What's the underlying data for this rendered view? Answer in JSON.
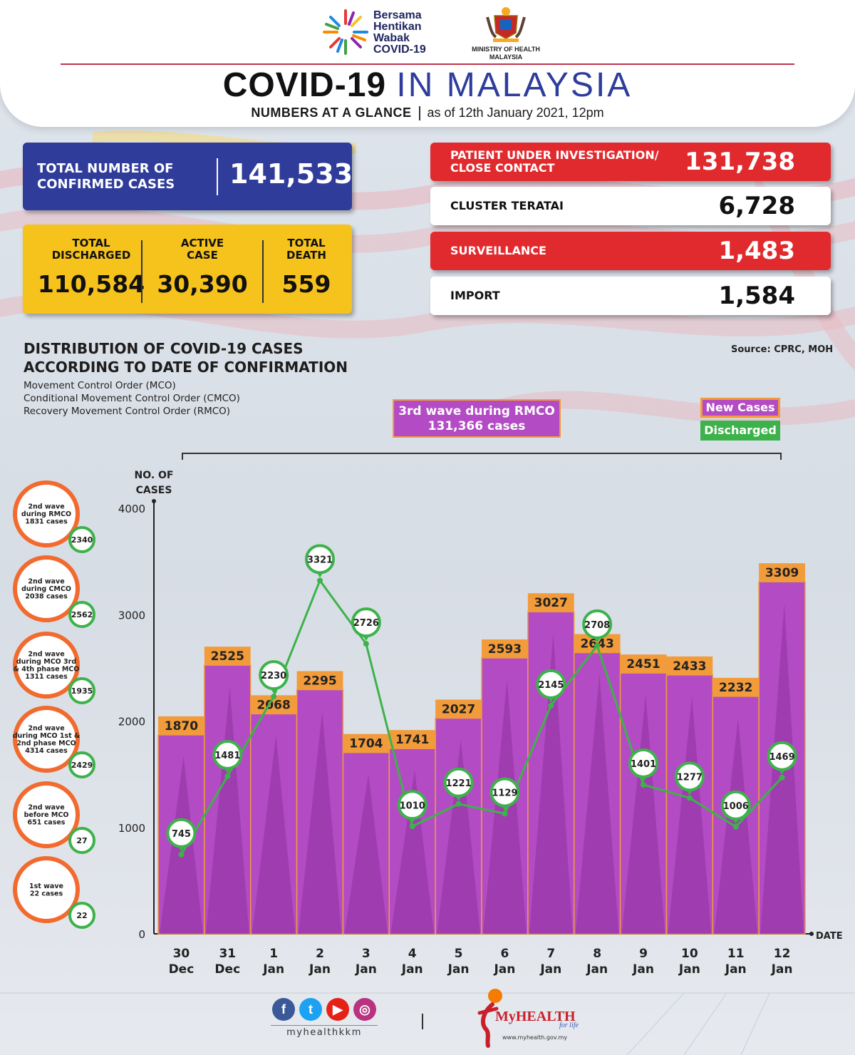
{
  "header": {
    "bersama_logo_text": "Bersama\nHentikan\nWabak\nCOVID-19",
    "moh_logo_text": "MINISTRY OF HEALTH\nMALAYSIA",
    "title_part1": "COVID-19",
    "title_part2": "IN MALAYSIA",
    "subtitle_bold": "NUMBERS AT A GLANCE",
    "subtitle_date": "as of 12th January 2021, 12pm"
  },
  "summary": {
    "total_label": "TOTAL NUMBER OF CONFIRMED CASES",
    "total_value": "141,533",
    "discharged_label": "TOTAL\nDISCHARGED",
    "discharged_value": "110,584",
    "active_label": "ACTIVE\nCASE",
    "active_value": "30,390",
    "death_label": "TOTAL\nDEATH",
    "death_value": "559"
  },
  "sources": [
    {
      "label": "PATIENT UNDER INVESTIGATION/ CLOSE CONTACT",
      "value": "131,738",
      "style": "red"
    },
    {
      "label": "CLUSTER TERATAI",
      "value": "6,728",
      "style": "white"
    },
    {
      "label": "SURVEILLANCE",
      "value": "1,483",
      "style": "red"
    },
    {
      "label": "IMPORT",
      "value": "1,584",
      "style": "white"
    }
  ],
  "distribution": {
    "title": "DISTRIBUTION OF COVID-19 CASES\nACCORDING TO DATE OF CONFIRMATION",
    "notes": [
      "Movement Control Order (MCO)",
      "Conditional Movement Control Order (CMCO)",
      "Recovery Movement Control Order (RMCO)"
    ],
    "source": "Source: CPRC, MOH",
    "wave3_label": "3rd wave during RMCO\n131,366 cases",
    "legend_new": "New Cases",
    "legend_discharged": "Discharged"
  },
  "chart_data": {
    "type": "bar",
    "ylabel": "NO. OF\nCASES",
    "xlabel": "DATE",
    "ylim": [
      0,
      4000
    ],
    "yticks": [
      0,
      1000,
      2000,
      3000,
      4000
    ],
    "categories": [
      "30\nDec",
      "31\nDec",
      "1\nJan",
      "2\nJan",
      "3\nJan",
      "4\nJan",
      "5\nJan",
      "6\nJan",
      "7\nJan",
      "8\nJan",
      "9\nJan",
      "10\nJan",
      "11\nJan",
      "12\nJan"
    ],
    "series": [
      {
        "name": "New Cases",
        "type": "bar",
        "color": "#b34cc4",
        "values": [
          1870,
          2525,
          2068,
          2295,
          1704,
          1741,
          2027,
          2593,
          3027,
          2643,
          2451,
          2433,
          2232,
          3309
        ]
      },
      {
        "name": "Discharged",
        "type": "line",
        "color": "#3db24a",
        "values": [
          745,
          1481,
          2230,
          3321,
          2726,
          1010,
          1221,
          1129,
          2145,
          2708,
          1401,
          1277,
          1006,
          1469
        ]
      }
    ]
  },
  "waves": [
    {
      "label": "2nd wave\nduring RMCO\n1831 cases",
      "discharged": "2340"
    },
    {
      "label": "2nd wave\nduring CMCO\n2038 cases",
      "discharged": "2562"
    },
    {
      "label": "2nd wave\nduring MCO 3rd\n& 4th phase MCO\n1311 cases",
      "discharged": "1935"
    },
    {
      "label": "2nd wave\nduring MCO 1st &\n2nd phase MCO\n4314 cases",
      "discharged": "2429"
    },
    {
      "label": "2nd wave\nbefore MCO\n651 cases",
      "discharged": "27"
    },
    {
      "label": "1st wave\n22 cases",
      "discharged": "22"
    }
  ],
  "footer": {
    "social_handle": "myhealthkkm",
    "brand": "MyHEALTH",
    "tagline": "for life",
    "url": "www.myhealth.gov.my"
  },
  "colors": {
    "bar": "#b34cc4",
    "bar_label": "#f29b3a",
    "line": "#3db24a",
    "total_box": "#2f3c9a",
    "yellow_box": "#f6c21c",
    "red_box": "#e12a2e"
  }
}
